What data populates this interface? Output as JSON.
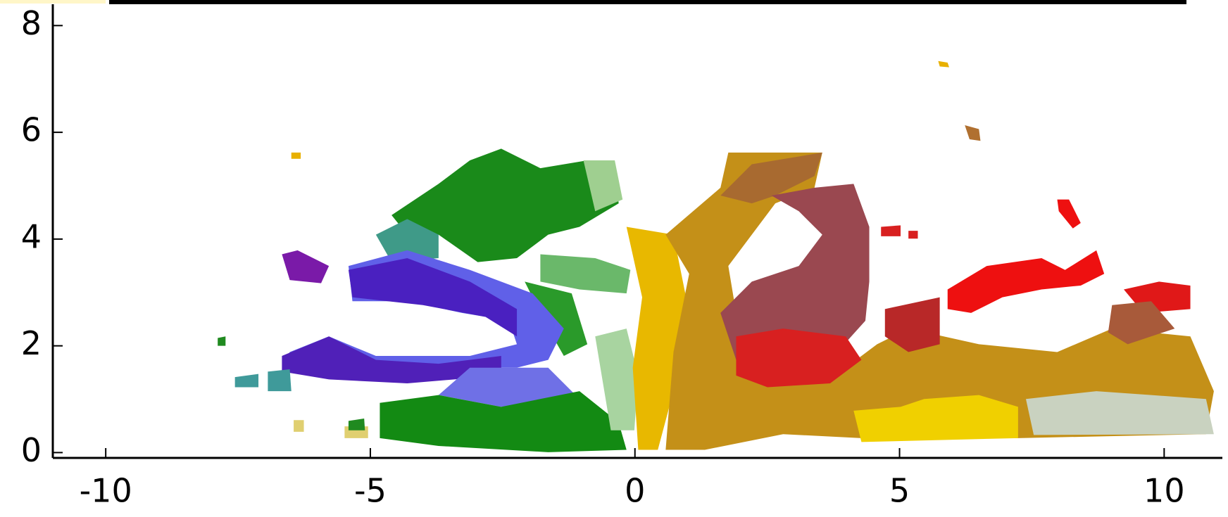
{
  "chart_data": {
    "type": "scatter",
    "xlim": [
      -11,
      11.1
    ],
    "ylim": [
      -0.1,
      8.4
    ],
    "xticks": [
      -10,
      -5,
      0,
      5,
      10
    ],
    "yticks": [
      0,
      2,
      4,
      6,
      8
    ]
  }
}
